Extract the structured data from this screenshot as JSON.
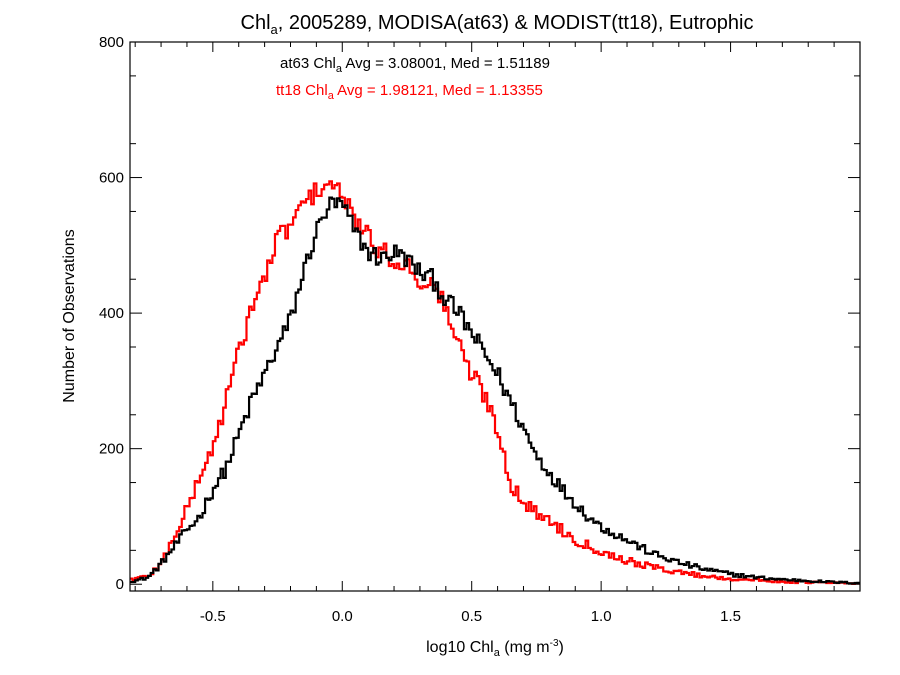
{
  "chart_data": {
    "type": "histogram-step",
    "title": {
      "prefix": "Chl",
      "sub": "a",
      "suffix": ", 2005289, MODISA(at63) & MODIST(tt18), Eutrophic"
    },
    "xlabel": {
      "prefix": "log10 Chl",
      "sub": "a",
      "mid": " (mg m",
      "sup": "-3",
      "suffix": ")"
    },
    "ylabel": "Number of Observations",
    "xlim": [
      -0.82,
      2.0
    ],
    "ylim": [
      -10,
      800
    ],
    "x_ticks": [
      "-0.5",
      "0.0",
      "0.5",
      "1.0",
      "1.5"
    ],
    "y_ticks": [
      "0",
      "200",
      "400",
      "600",
      "800"
    ],
    "annotations": [
      {
        "prefix": "at63 Chl",
        "sub": "a",
        "suffix": " Avg = 3.08001, Med = 1.51189",
        "color": "#000000"
      },
      {
        "prefix": "tt18 Chl",
        "sub": "a",
        "suffix": " Avg = 1.98121, Med = 1.13355",
        "color": "#ff0000"
      }
    ],
    "bin_width": 0.01,
    "series": [
      {
        "color": "#000000",
        "keypoints": [
          [
            -0.8,
            5
          ],
          [
            -0.75,
            10
          ],
          [
            -0.7,
            30
          ],
          [
            -0.65,
            55
          ],
          [
            -0.6,
            80
          ],
          [
            -0.55,
            100
          ],
          [
            -0.5,
            140
          ],
          [
            -0.45,
            170
          ],
          [
            -0.4,
            220
          ],
          [
            -0.35,
            270
          ],
          [
            -0.3,
            310
          ],
          [
            -0.25,
            350
          ],
          [
            -0.2,
            390
          ],
          [
            -0.15,
            460
          ],
          [
            -0.1,
            520
          ],
          [
            -0.05,
            560
          ],
          [
            0.0,
            560
          ],
          [
            0.05,
            520
          ],
          [
            0.1,
            490
          ],
          [
            0.15,
            480
          ],
          [
            0.2,
            490
          ],
          [
            0.25,
            480
          ],
          [
            0.3,
            460
          ],
          [
            0.35,
            450
          ],
          [
            0.4,
            420
          ],
          [
            0.45,
            400
          ],
          [
            0.5,
            370
          ],
          [
            0.55,
            340
          ],
          [
            0.6,
            310
          ],
          [
            0.65,
            270
          ],
          [
            0.7,
            230
          ],
          [
            0.75,
            190
          ],
          [
            0.8,
            165
          ],
          [
            0.85,
            140
          ],
          [
            0.9,
            120
          ],
          [
            0.95,
            100
          ],
          [
            1.0,
            85
          ],
          [
            1.1,
            65
          ],
          [
            1.2,
            45
          ],
          [
            1.3,
            32
          ],
          [
            1.4,
            22
          ],
          [
            1.5,
            15
          ],
          [
            1.6,
            10
          ],
          [
            1.7,
            7
          ],
          [
            1.8,
            5
          ],
          [
            1.9,
            3
          ],
          [
            1.98,
            2
          ]
        ],
        "noise_amplitude": 14
      },
      {
        "color": "#ff0000",
        "keypoints": [
          [
            -0.8,
            8
          ],
          [
            -0.75,
            12
          ],
          [
            -0.7,
            30
          ],
          [
            -0.65,
            70
          ],
          [
            -0.6,
            110
          ],
          [
            -0.55,
            160
          ],
          [
            -0.5,
            200
          ],
          [
            -0.45,
            270
          ],
          [
            -0.4,
            340
          ],
          [
            -0.35,
            410
          ],
          [
            -0.3,
            450
          ],
          [
            -0.25,
            510
          ],
          [
            -0.2,
            530
          ],
          [
            -0.15,
            560
          ],
          [
            -0.1,
            580
          ],
          [
            -0.05,
            595
          ],
          [
            0.0,
            570
          ],
          [
            0.05,
            540
          ],
          [
            0.1,
            510
          ],
          [
            0.15,
            490
          ],
          [
            0.2,
            480
          ],
          [
            0.25,
            470
          ],
          [
            0.3,
            450
          ],
          [
            0.35,
            440
          ],
          [
            0.4,
            410
          ],
          [
            0.45,
            350
          ],
          [
            0.5,
            310
          ],
          [
            0.55,
            280
          ],
          [
            0.6,
            230
          ],
          [
            0.65,
            150
          ],
          [
            0.7,
            120
          ],
          [
            0.75,
            105
          ],
          [
            0.8,
            95
          ],
          [
            0.85,
            80
          ],
          [
            0.9,
            65
          ],
          [
            0.95,
            58
          ],
          [
            1.0,
            48
          ],
          [
            1.1,
            35
          ],
          [
            1.2,
            25
          ],
          [
            1.3,
            18
          ],
          [
            1.4,
            12
          ],
          [
            1.5,
            8
          ],
          [
            1.6,
            6
          ],
          [
            1.7,
            4
          ],
          [
            1.8,
            3
          ],
          [
            1.9,
            2
          ],
          [
            1.98,
            1
          ]
        ],
        "noise_amplitude": 16
      }
    ]
  }
}
